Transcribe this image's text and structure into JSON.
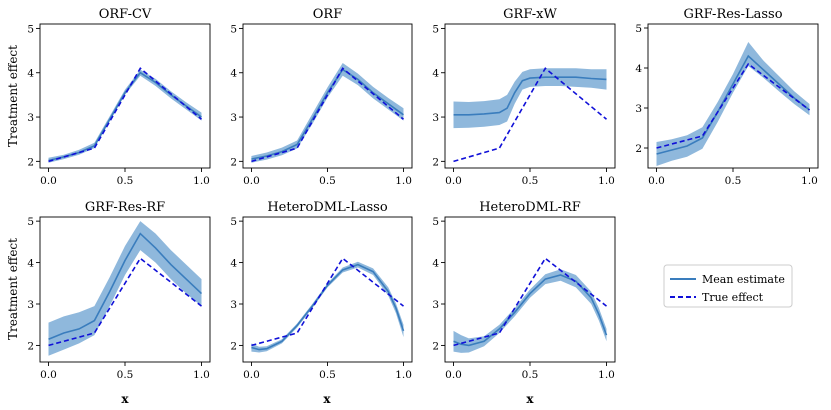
{
  "figure": {
    "ylabel": "Treatment effect",
    "xlabel": "x",
    "mean_color": "#3a7dbd",
    "band_color": "#8fb8dc",
    "true_color": "#1010d8",
    "legend": {
      "placement": "bottom-right",
      "items": [
        "Mean estimate",
        "True effect"
      ]
    }
  },
  "chart_data": [
    {
      "type": "line",
      "title": "ORF-CV",
      "xlim": [
        0,
        1
      ],
      "ylim": [
        1.85,
        5.1
      ],
      "xticks": [
        0.0,
        0.5,
        1.0
      ],
      "xtick_labels": [
        "0.0",
        "0.5",
        "1.0"
      ],
      "yticks": [
        2,
        3,
        4,
        5
      ],
      "ytick_labels": [
        "2",
        "3",
        "4",
        "5"
      ],
      "true_effect": {
        "name": "True effect",
        "x": [
          0,
          0.3,
          0.6,
          1.0
        ],
        "y": [
          2.0,
          2.3,
          4.1,
          2.95
        ]
      },
      "mean_estimate": {
        "name": "Mean estimate",
        "x": [
          0,
          0.1,
          0.2,
          0.3,
          0.4,
          0.5,
          0.6,
          0.7,
          0.8,
          0.9,
          1.0
        ],
        "y": [
          2.02,
          2.1,
          2.2,
          2.35,
          2.95,
          3.55,
          4.0,
          3.78,
          3.5,
          3.25,
          3.0
        ]
      },
      "band": {
        "lower": [
          1.97,
          2.05,
          2.15,
          2.3,
          2.9,
          3.5,
          3.93,
          3.7,
          3.42,
          3.17,
          2.92
        ],
        "upper": [
          2.08,
          2.15,
          2.26,
          2.42,
          3.02,
          3.62,
          4.07,
          3.86,
          3.58,
          3.33,
          3.1
        ]
      }
    },
    {
      "type": "line",
      "title": "ORF",
      "xlim": [
        0,
        1
      ],
      "ylim": [
        1.85,
        5.1
      ],
      "xticks": [
        0.0,
        0.5,
        1.0
      ],
      "xtick_labels": [
        "0.0",
        "0.5",
        "1.0"
      ],
      "yticks": [
        2,
        3,
        4,
        5
      ],
      "ytick_labels": [
        "2",
        "3",
        "4",
        "5"
      ],
      "true_effect": {
        "name": "True effect",
        "x": [
          0,
          0.3,
          0.6,
          1.0
        ],
        "y": [
          2.0,
          2.3,
          4.1,
          2.95
        ]
      },
      "mean_estimate": {
        "name": "Mean estimate",
        "x": [
          0,
          0.1,
          0.2,
          0.3,
          0.4,
          0.5,
          0.6,
          0.7,
          0.8,
          0.9,
          1.0
        ],
        "y": [
          2.05,
          2.12,
          2.22,
          2.38,
          2.95,
          3.55,
          4.07,
          3.85,
          3.55,
          3.3,
          3.05
        ]
      },
      "band": {
        "lower": [
          1.97,
          2.04,
          2.14,
          2.29,
          2.84,
          3.44,
          3.93,
          3.72,
          3.42,
          3.17,
          2.92
        ],
        "upper": [
          2.12,
          2.2,
          2.31,
          2.47,
          3.07,
          3.67,
          4.22,
          3.98,
          3.68,
          3.43,
          3.2
        ]
      }
    },
    {
      "type": "line",
      "title": "GRF-xW",
      "xlim": [
        0,
        1
      ],
      "ylim": [
        1.85,
        5.1
      ],
      "xticks": [
        0.0,
        0.5,
        1.0
      ],
      "xtick_labels": [
        "0.0",
        "0.5",
        "1.0"
      ],
      "yticks": [
        2,
        3,
        4,
        5
      ],
      "ytick_labels": [
        "2",
        "3",
        "4",
        "5"
      ],
      "true_effect": {
        "name": "True effect",
        "x": [
          0,
          0.3,
          0.6,
          1.0
        ],
        "y": [
          2.0,
          2.3,
          4.1,
          2.95
        ]
      },
      "mean_estimate": {
        "name": "Mean estimate",
        "x": [
          0,
          0.1,
          0.2,
          0.3,
          0.35,
          0.4,
          0.45,
          0.5,
          0.6,
          0.7,
          0.8,
          0.9,
          1.0
        ],
        "y": [
          3.05,
          3.05,
          3.07,
          3.1,
          3.2,
          3.55,
          3.82,
          3.88,
          3.9,
          3.9,
          3.9,
          3.87,
          3.85
        ]
      },
      "band": {
        "lower": [
          2.75,
          2.76,
          2.78,
          2.82,
          2.9,
          3.3,
          3.62,
          3.68,
          3.7,
          3.7,
          3.68,
          3.66,
          3.62
        ],
        "upper": [
          3.35,
          3.34,
          3.36,
          3.4,
          3.5,
          3.8,
          4.02,
          4.08,
          4.1,
          4.1,
          4.1,
          4.08,
          4.08
        ]
      }
    },
    {
      "type": "line",
      "title": "GRF-Res-Lasso",
      "xlim": [
        0,
        1
      ],
      "ylim": [
        1.5,
        5.1
      ],
      "xticks": [
        0.0,
        0.5,
        1.0
      ],
      "xtick_labels": [
        "0.0",
        "0.5",
        "1.0"
      ],
      "yticks": [
        2,
        3,
        4,
        5
      ],
      "ytick_labels": [
        "2",
        "3",
        "4",
        "5"
      ],
      "true_effect": {
        "name": "True effect",
        "x": [
          0,
          0.3,
          0.6,
          1.0
        ],
        "y": [
          2.0,
          2.3,
          4.1,
          2.95
        ]
      },
      "mean_estimate": {
        "name": "Mean estimate",
        "x": [
          0,
          0.1,
          0.2,
          0.3,
          0.4,
          0.5,
          0.6,
          0.7,
          0.8,
          0.9,
          1.0
        ],
        "y": [
          1.85,
          1.95,
          2.05,
          2.25,
          2.9,
          3.6,
          4.3,
          3.95,
          3.6,
          3.25,
          2.95
        ]
      },
      "band": {
        "lower": [
          1.55,
          1.68,
          1.78,
          1.98,
          2.65,
          3.38,
          4.05,
          3.75,
          3.42,
          3.1,
          2.82
        ],
        "upper": [
          2.15,
          2.22,
          2.32,
          2.52,
          3.15,
          3.85,
          4.65,
          4.18,
          3.8,
          3.42,
          3.1
        ]
      }
    },
    {
      "type": "line",
      "title": "GRF-Res-RF",
      "xlim": [
        0,
        1
      ],
      "ylim": [
        1.6,
        5.1
      ],
      "xticks": [
        0.0,
        0.5,
        1.0
      ],
      "xtick_labels": [
        "0.0",
        "0.5",
        "1.0"
      ],
      "yticks": [
        2,
        3,
        4,
        5
      ],
      "ytick_labels": [
        "2",
        "3",
        "4",
        "5"
      ],
      "true_effect": {
        "name": "True effect",
        "x": [
          0,
          0.3,
          0.6,
          1.0
        ],
        "y": [
          2.0,
          2.3,
          4.1,
          2.95
        ]
      },
      "mean_estimate": {
        "name": "Mean estimate",
        "x": [
          0,
          0.1,
          0.2,
          0.3,
          0.4,
          0.5,
          0.6,
          0.7,
          0.8,
          0.9,
          1.0
        ],
        "y": [
          2.15,
          2.3,
          2.4,
          2.6,
          3.3,
          4.05,
          4.7,
          4.35,
          3.95,
          3.6,
          3.25
        ]
      },
      "band": {
        "lower": [
          1.75,
          1.9,
          2.05,
          2.25,
          2.95,
          3.7,
          4.3,
          4.0,
          3.6,
          3.25,
          2.95
        ],
        "upper": [
          2.55,
          2.7,
          2.8,
          2.95,
          3.65,
          4.4,
          5.0,
          4.7,
          4.3,
          3.95,
          3.6
        ]
      }
    },
    {
      "type": "line",
      "title": "HeteroDML-Lasso",
      "xlim": [
        0,
        1
      ],
      "ylim": [
        1.6,
        5.1
      ],
      "xticks": [
        0.0,
        0.5,
        1.0
      ],
      "xtick_labels": [
        "0.0",
        "0.5",
        "1.0"
      ],
      "yticks": [
        2,
        3,
        4,
        5
      ],
      "ytick_labels": [
        "2",
        "3",
        "4",
        "5"
      ],
      "true_effect": {
        "name": "True effect",
        "x": [
          0,
          0.3,
          0.6,
          1.0
        ],
        "y": [
          2.0,
          2.3,
          4.1,
          2.95
        ]
      },
      "mean_estimate": {
        "name": "Mean estimate",
        "x": [
          0,
          0.05,
          0.1,
          0.2,
          0.3,
          0.4,
          0.5,
          0.6,
          0.7,
          0.8,
          0.9,
          0.95,
          1.0
        ],
        "y": [
          1.95,
          1.9,
          1.92,
          2.1,
          2.48,
          2.95,
          3.45,
          3.82,
          3.95,
          3.78,
          3.3,
          2.9,
          2.35
        ]
      },
      "band": {
        "lower": [
          1.85,
          1.83,
          1.86,
          2.05,
          2.43,
          2.9,
          3.4,
          3.76,
          3.88,
          3.7,
          3.2,
          2.78,
          2.2
        ],
        "upper": [
          2.05,
          1.97,
          1.98,
          2.15,
          2.53,
          3.0,
          3.5,
          3.88,
          4.02,
          3.86,
          3.4,
          3.02,
          2.5
        ]
      }
    },
    {
      "type": "line",
      "title": "HeteroDML-RF",
      "xlim": [
        0,
        1
      ],
      "ylim": [
        1.6,
        5.1
      ],
      "xticks": [
        0.0,
        0.5,
        1.0
      ],
      "xtick_labels": [
        "0.0",
        "0.5",
        "1.0"
      ],
      "yticks": [
        2,
        3,
        4,
        5
      ],
      "ytick_labels": [
        "2",
        "3",
        "4",
        "5"
      ],
      "true_effect": {
        "name": "True effect",
        "x": [
          0,
          0.3,
          0.6,
          1.0
        ],
        "y": [
          2.0,
          2.3,
          4.1,
          2.95
        ]
      },
      "mean_estimate": {
        "name": "Mean estimate",
        "x": [
          0,
          0.05,
          0.1,
          0.2,
          0.3,
          0.4,
          0.5,
          0.6,
          0.7,
          0.8,
          0.9,
          0.95,
          1.0
        ],
        "y": [
          2.1,
          2.03,
          2.0,
          2.1,
          2.4,
          2.8,
          3.25,
          3.6,
          3.7,
          3.55,
          3.15,
          2.75,
          2.25
        ]
      },
      "band": {
        "lower": [
          1.85,
          1.82,
          1.83,
          1.98,
          2.3,
          2.7,
          3.15,
          3.48,
          3.56,
          3.4,
          3.0,
          2.6,
          2.1
        ],
        "upper": [
          2.35,
          2.25,
          2.17,
          2.22,
          2.5,
          2.9,
          3.35,
          3.72,
          3.84,
          3.7,
          3.3,
          2.9,
          2.4
        ]
      }
    }
  ]
}
